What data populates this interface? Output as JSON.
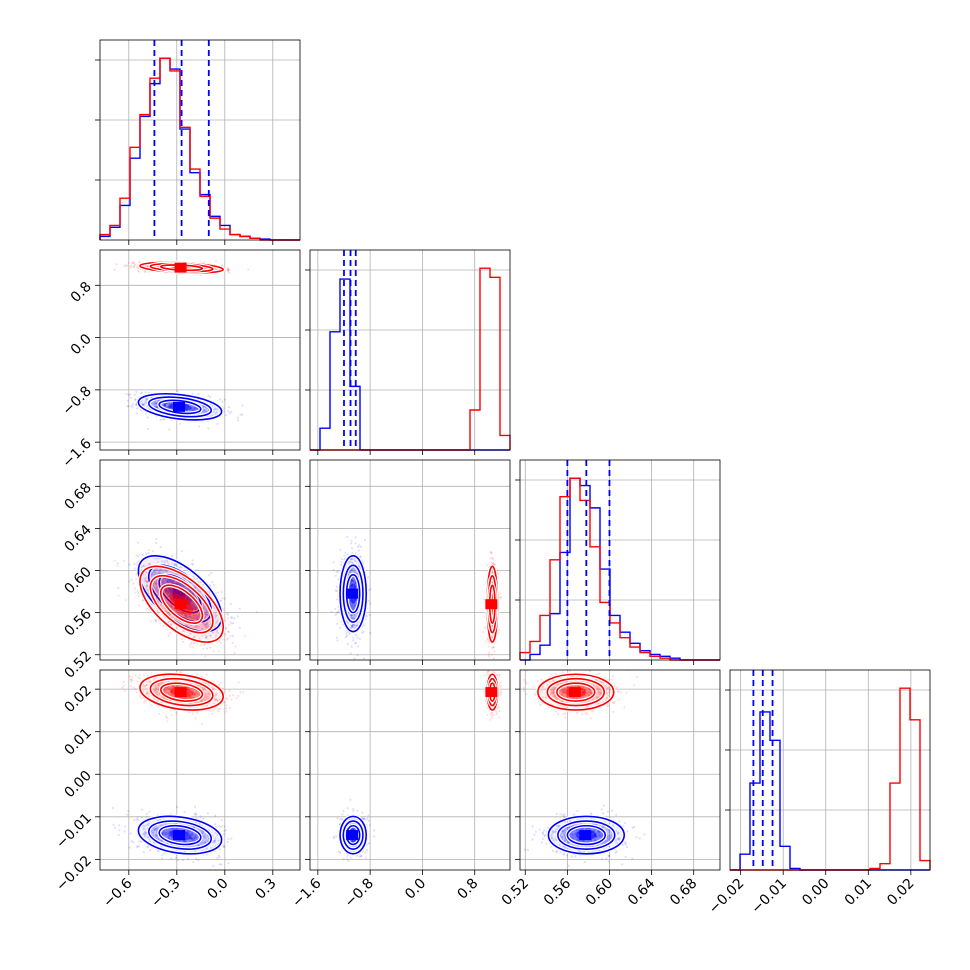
{
  "chart_data": {
    "type": "corner",
    "title": "",
    "parameters": [
      "",
      "",
      "",
      ""
    ],
    "ranges": [
      [
        -0.78,
        0.47
      ],
      [
        -1.72,
        1.34
      ],
      [
        0.515,
        0.705
      ],
      [
        -0.0225,
        0.0245
      ]
    ],
    "ticks": [
      {
        "values": [
          -0.6,
          -0.3,
          0.0,
          0.3
        ],
        "labels": [
          "−0.6",
          "−0.3",
          "0.0",
          "0.3"
        ]
      },
      {
        "values": [
          -1.6,
          -0.8,
          0.0,
          0.8
        ],
        "labels": [
          "−1.6",
          "−0.8",
          "0.0",
          "0.8"
        ]
      },
      {
        "values": [
          0.52,
          0.56,
          0.6,
          0.64,
          0.68
        ],
        "labels": [
          "0.52",
          "0.56",
          "0.60",
          "0.64",
          "0.68"
        ]
      },
      {
        "values": [
          -0.02,
          -0.01,
          0.0,
          0.01,
          0.02
        ],
        "labels": [
          "−0.02",
          "−0.01",
          "0.00",
          "0.01",
          "0.02"
        ]
      }
    ],
    "grid": true,
    "series": [
      {
        "color": "#0000ff",
        "means": [
          -0.28,
          -1.06,
          0.578,
          -0.0143
        ],
        "sigmas": [
          0.13,
          0.1,
          0.018,
          0.0022
        ],
        "pair_correlations": {
          "0-1": -0.35,
          "0-2": -0.6,
          "0-3": -0.25,
          "1-2": 0.0,
          "1-3": 0.0,
          "2-3": 0.0
        },
        "quantiles_1d": [
          [
            -0.44,
            -0.27,
            -0.1
          ],
          [
            -1.2,
            -1.1,
            -1.02
          ],
          [
            0.56,
            0.578,
            0.6
          ],
          [
            -0.017,
            -0.0148,
            -0.0125
          ]
        ]
      },
      {
        "color": "#ff0000",
        "means": [
          -0.27,
          1.07,
          0.568,
          0.0193
        ],
        "sigmas": [
          0.13,
          0.04,
          0.018,
          0.0021
        ],
        "pair_correlations": {
          "0-1": -0.35,
          "0-2": -0.6,
          "0-3": -0.25,
          "1-2": 0.0,
          "1-3": 0.0,
          "2-3": 0.0
        }
      }
    ],
    "histograms_1d": [
      {
        "bins": 20,
        "blue": [
          0.02,
          0.07,
          0.19,
          0.45,
          0.68,
          0.86,
          1.0,
          0.94,
          0.61,
          0.37,
          0.25,
          0.13,
          0.08,
          0.03,
          0.02,
          0.01,
          0.005,
          0.0,
          0.0,
          0.0
        ],
        "red": [
          0.03,
          0.08,
          0.23,
          0.51,
          0.69,
          0.89,
          1.0,
          0.93,
          0.62,
          0.39,
          0.24,
          0.12,
          0.06,
          0.03,
          0.02,
          0.01,
          0.0,
          0.0,
          0.0,
          0.0
        ]
      },
      {
        "bins": 20,
        "blue": [
          0.0,
          0.12,
          0.65,
          0.94,
          0.35,
          0.0,
          0.0,
          0.0,
          0.0,
          0.0,
          0.0,
          0.0,
          0.0,
          0.0,
          0.0,
          0.0,
          0.0,
          0.0,
          0.0,
          0.0
        ],
        "red": [
          0.0,
          0.0,
          0.0,
          0.0,
          0.0,
          0.0,
          0.0,
          0.0,
          0.0,
          0.0,
          0.0,
          0.0,
          0.0,
          0.0,
          0.0,
          0.0,
          0.22,
          1.0,
          0.95,
          0.08
        ]
      },
      {
        "bins": 20,
        "blue": [
          0.0,
          0.03,
          0.08,
          0.25,
          0.58,
          0.98,
          0.94,
          0.82,
          0.49,
          0.24,
          0.15,
          0.09,
          0.05,
          0.03,
          0.02,
          0.01,
          0.0,
          0.0,
          0.0,
          0.0
        ],
        "red": [
          0.04,
          0.1,
          0.24,
          0.54,
          0.88,
          0.98,
          0.86,
          0.61,
          0.31,
          0.2,
          0.12,
          0.07,
          0.04,
          0.02,
          0.01,
          0.0,
          0.0,
          0.0,
          0.0,
          0.0
        ]
      },
      {
        "bins": 20,
        "blue": [
          0.0,
          0.1,
          0.55,
          1.0,
          0.82,
          0.15,
          0.01,
          0.0,
          0.0,
          0.0,
          0.0,
          0.0,
          0.0,
          0.0,
          0.0,
          0.0,
          0.0,
          0.0,
          0.0,
          0.0
        ],
        "red": [
          0.0,
          0.0,
          0.0,
          0.0,
          0.0,
          0.0,
          0.0,
          0.0,
          0.0,
          0.0,
          0.0,
          0.0,
          0.0,
          0.0,
          0.01,
          0.04,
          0.55,
          1.15,
          0.95,
          0.06
        ]
      }
    ]
  }
}
